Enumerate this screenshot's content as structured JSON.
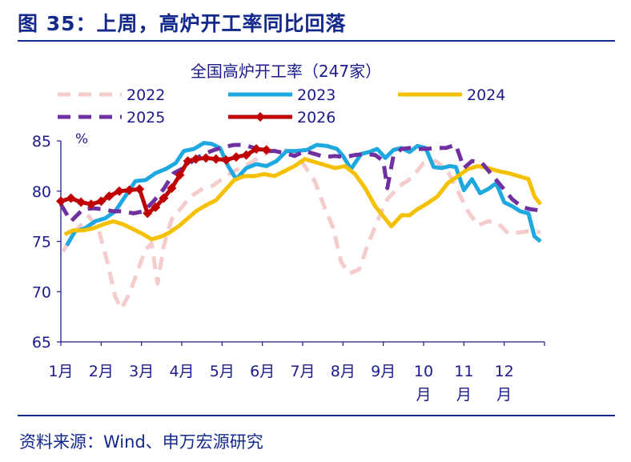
{
  "figure": {
    "title": "图 35：上周，高炉开工率同比回落",
    "source": "资料来源：Wind、申万宏源研究"
  },
  "chart_data": {
    "type": "line",
    "title": "全国高炉开工率（247家）",
    "ylabel": "%",
    "ylim": [
      65,
      85
    ],
    "yticks": [
      65,
      70,
      75,
      80,
      85
    ],
    "xlim": [
      1,
      13
    ],
    "x_ticks": [
      {
        "x": 1,
        "label": [
          "1月"
        ]
      },
      {
        "x": 2,
        "label": [
          "2月"
        ]
      },
      {
        "x": 3,
        "label": [
          "3月"
        ]
      },
      {
        "x": 4,
        "label": [
          "4月"
        ]
      },
      {
        "x": 5,
        "label": [
          "5月"
        ]
      },
      {
        "x": 6,
        "label": [
          "6月"
        ]
      },
      {
        "x": 7,
        "label": [
          "7月"
        ]
      },
      {
        "x": 8,
        "label": [
          "8月"
        ]
      },
      {
        "x": 9,
        "label": [
          "9月"
        ]
      },
      {
        "x": 10,
        "label": [
          "10",
          "月"
        ]
      },
      {
        "x": 11,
        "label": [
          "11",
          "月"
        ]
      },
      {
        "x": 12,
        "label": [
          "12",
          "月"
        ]
      }
    ],
    "legend_placement": "top",
    "grid": false,
    "series": [
      {
        "name": "2022",
        "color": "#f4cccc",
        "dash": "dashed",
        "marker": "none",
        "x": [
          1.05,
          1.35,
          1.7,
          1.95,
          2.15,
          2.35,
          2.5,
          2.7,
          2.9,
          3.1,
          3.25,
          3.4,
          3.55,
          3.75,
          4.0,
          4.2,
          4.5,
          4.75,
          5.0,
          5.3,
          5.6,
          5.9,
          6.2,
          6.5,
          6.8,
          7.0,
          7.3,
          7.55,
          7.75,
          7.95,
          8.15,
          8.4,
          8.6,
          8.85,
          9.1,
          9.4,
          9.7,
          10.0,
          10.3,
          10.6,
          10.85,
          11.1,
          11.35,
          11.6,
          11.85,
          12.1,
          12.4,
          12.6,
          12.75,
          12.9
        ],
        "y": [
          74,
          76,
          77.5,
          76,
          73,
          69.5,
          68.3,
          69.8,
          72,
          74.2,
          74.8,
          70.8,
          74.5,
          77.2,
          78.4,
          79.4,
          80.2,
          80.5,
          81.2,
          82.0,
          82.6,
          83.3,
          84.0,
          84.2,
          83.6,
          82.8,
          81.0,
          78.3,
          76.4,
          73.0,
          71.8,
          72.2,
          74.5,
          77.0,
          79.2,
          80.5,
          81.3,
          82.8,
          83.0,
          82.0,
          80.0,
          78.0,
          76.6,
          77.0,
          76.8,
          75.8,
          75.9,
          76.0,
          76.0,
          75.9
        ]
      },
      {
        "name": "2023",
        "color": "#1fa8e0",
        "dash": "solid",
        "marker": "none",
        "x": [
          1.15,
          1.35,
          1.6,
          1.85,
          2.1,
          2.35,
          2.6,
          2.85,
          3.1,
          3.35,
          3.6,
          3.85,
          4.05,
          4.3,
          4.55,
          4.75,
          4.95,
          5.15,
          5.35,
          5.6,
          5.85,
          6.1,
          6.35,
          6.6,
          6.85,
          7.1,
          7.35,
          7.6,
          7.85,
          8.0,
          8.2,
          8.45,
          8.65,
          8.85,
          9.05,
          9.25,
          9.45,
          9.65,
          9.85,
          10.05,
          10.25,
          10.45,
          10.65,
          10.8,
          11.0,
          11.2,
          11.4,
          11.6,
          11.8,
          12.0,
          12.2,
          12.4,
          12.6,
          12.75,
          12.9
        ],
        "y": [
          74.6,
          76.0,
          76.3,
          77.0,
          77.3,
          78.0,
          79.5,
          81.0,
          81.1,
          81.8,
          82.2,
          82.8,
          84.0,
          84.2,
          84.8,
          84.7,
          84.3,
          82.5,
          81.2,
          82.3,
          82.7,
          82.5,
          83.0,
          84.0,
          84.0,
          84.1,
          84.6,
          84.5,
          84.2,
          83.5,
          82.2,
          83.7,
          83.9,
          84.2,
          83.3,
          84.1,
          84.3,
          83.9,
          84.5,
          84.3,
          82.4,
          82.3,
          82.5,
          82.4,
          80.1,
          81.2,
          79.8,
          80.2,
          80.8,
          78.9,
          78.5,
          78.0,
          77.8,
          75.5,
          75.0
        ]
      },
      {
        "name": "2024",
        "color": "#f5c000",
        "dash": "solid",
        "marker": "none",
        "x": [
          1.1,
          1.3,
          1.55,
          1.8,
          2.05,
          2.3,
          2.55,
          2.8,
          3.05,
          3.25,
          3.5,
          3.7,
          3.95,
          4.15,
          4.35,
          4.6,
          4.85,
          5.05,
          5.3,
          5.55,
          5.8,
          6.05,
          6.3,
          6.55,
          6.8,
          7.05,
          7.3,
          7.55,
          7.8,
          8.05,
          8.3,
          8.55,
          8.8,
          9.0,
          9.2,
          9.45,
          9.65,
          9.85,
          10.1,
          10.35,
          10.6,
          10.85,
          11.1,
          11.35,
          11.6,
          11.85,
          12.1,
          12.35,
          12.6,
          12.75,
          12.9
        ],
        "y": [
          75.7,
          76.1,
          76.1,
          76.3,
          76.7,
          77.0,
          76.7,
          76.2,
          75.7,
          75.2,
          75.5,
          75.9,
          76.6,
          77.3,
          78.0,
          78.6,
          79.1,
          80.0,
          81.1,
          81.5,
          81.5,
          81.7,
          81.5,
          82.0,
          82.5,
          83.2,
          82.9,
          82.6,
          82.3,
          82.5,
          81.7,
          80.3,
          78.5,
          77.5,
          76.5,
          77.6,
          77.6,
          78.2,
          78.8,
          79.5,
          80.8,
          81.5,
          82.2,
          82.5,
          82.3,
          82.0,
          81.8,
          81.5,
          81.2,
          79.5,
          78.7
        ]
      },
      {
        "name": "2025",
        "color": "#7030a0",
        "dash": "dashed",
        "marker": "none",
        "x": [
          1.0,
          1.25,
          1.55,
          1.8,
          2.05,
          2.3,
          2.55,
          2.8,
          3.05,
          3.3,
          3.55,
          3.8,
          4.05,
          4.3,
          4.55,
          4.8,
          5.05,
          5.3,
          5.55,
          5.8,
          6.05,
          6.3,
          6.55,
          6.8,
          7.05,
          7.3,
          7.55,
          7.8,
          8.05,
          8.3,
          8.55,
          8.8,
          9.0,
          9.1,
          9.25,
          9.45,
          9.65,
          9.85,
          10.05,
          10.3,
          10.55,
          10.8,
          11.0,
          11.2,
          11.45,
          11.7,
          11.95,
          12.2,
          12.45,
          12.65,
          12.85
        ],
        "y": [
          78.7,
          77.0,
          78.2,
          78.3,
          78.2,
          78.0,
          78.0,
          77.8,
          78.0,
          79.0,
          80.2,
          81.8,
          82.3,
          83.1,
          83.7,
          84.1,
          84.4,
          84.6,
          84.6,
          84.3,
          84.0,
          84.0,
          83.8,
          83.5,
          84.0,
          83.7,
          83.4,
          83.5,
          83.4,
          83.6,
          83.7,
          83.6,
          83.0,
          80.3,
          83.5,
          84.2,
          84.3,
          84.2,
          84.2,
          84.3,
          84.3,
          84.6,
          82.3,
          83.0,
          82.8,
          81.6,
          80.4,
          79.2,
          78.4,
          78.2,
          78.1
        ]
      },
      {
        "name": "2026",
        "color": "#c00000",
        "dash": "solid",
        "marker": "diamond",
        "x": [
          1.0,
          1.25,
          1.5,
          1.75,
          2.0,
          2.2,
          2.45,
          2.7,
          2.95,
          3.15,
          3.35,
          3.55,
          3.75,
          3.95,
          4.15,
          4.35,
          4.6,
          4.85,
          5.1,
          5.35,
          5.6,
          5.85,
          6.1
        ],
        "y": [
          79.0,
          79.3,
          78.9,
          78.7,
          79.0,
          79.5,
          80.0,
          80.1,
          80.2,
          77.8,
          78.4,
          79.3,
          80.3,
          81.6,
          83.0,
          83.2,
          83.3,
          83.2,
          83.1,
          83.4,
          83.6,
          84.2,
          84.1
        ]
      }
    ]
  }
}
